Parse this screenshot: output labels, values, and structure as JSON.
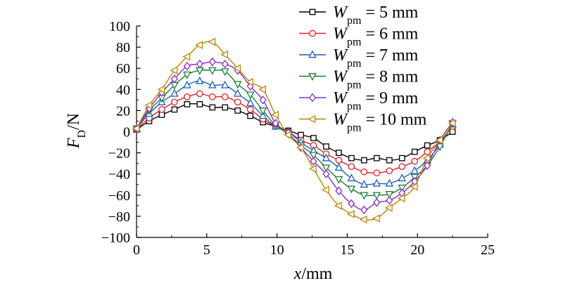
{
  "chart_data": {
    "type": "line",
    "xlabel": {
      "main": "x",
      "unit": "/mm"
    },
    "ylabel": {
      "main": "F",
      "sub": "D",
      "unit": "/N"
    },
    "xlim": [
      0,
      25
    ],
    "ylim": [
      -100,
      100
    ],
    "xticks": [
      0,
      5,
      10,
      15,
      20,
      25
    ],
    "yticks": [
      -100,
      -80,
      -60,
      -40,
      -20,
      0,
      20,
      40,
      60,
      80,
      100
    ],
    "xtick_labels": [
      "0",
      "5",
      "10",
      "15",
      "20",
      "25"
    ],
    "ytick_labels": [
      "−100",
      "−80",
      "−60",
      "−40",
      "−20",
      "0",
      "20",
      "40",
      "60",
      "80",
      "100"
    ],
    "grid": false,
    "legend_position": "top-right",
    "x": [
      0,
      0.9,
      1.8,
      2.7,
      3.6,
      4.5,
      5.4,
      6.3,
      7.2,
      8.1,
      9.0,
      9.9,
      10.8,
      11.7,
      12.6,
      13.5,
      14.4,
      15.3,
      16.2,
      17.1,
      18.0,
      18.9,
      19.8,
      20.7,
      21.6,
      22.5
    ],
    "series": [
      {
        "name": "W_pm = 5 mm",
        "legend": {
          "main": "W",
          "sub": "pm",
          "rest": " = 5 mm"
        },
        "color": "#000000",
        "marker": "square",
        "values": [
          2,
          10,
          16,
          21,
          26,
          26,
          23,
          23,
          20,
          15,
          9,
          5,
          1,
          -3,
          -6,
          -14,
          -20,
          -25,
          -27,
          -25,
          -27,
          -25,
          -19,
          -13,
          -8,
          0
        ]
      },
      {
        "name": "W_pm = 6 mm",
        "legend": {
          "main": "W",
          "sub": "pm",
          "rest": " = 6 mm"
        },
        "color": "#e0202a",
        "marker": "circle",
        "values": [
          2,
          13,
          21,
          28,
          33,
          36,
          33,
          33,
          28,
          21,
          12,
          5,
          0,
          -8,
          -13,
          -21,
          -27,
          -33,
          -38,
          -39,
          -37,
          -33,
          -28,
          -19,
          -9,
          5
        ]
      },
      {
        "name": "W_pm = 7 mm",
        "legend": {
          "main": "W",
          "sub": "pm",
          "rest": " = 7 mm"
        },
        "color": "#1f5fb5",
        "marker": "triangle-up",
        "values": [
          3,
          17,
          28,
          36,
          44,
          48,
          44,
          44,
          36,
          27,
          15,
          5,
          0,
          -10,
          -18,
          -25,
          -34,
          -44,
          -50,
          -49,
          -49,
          -44,
          -37,
          -27,
          -12,
          7
        ]
      },
      {
        "name": "W_pm = 8 mm",
        "legend": {
          "main": "W",
          "sub": "pm",
          "rest": " = 8 mm"
        },
        "color": "#1e7a3a",
        "marker": "triangle-down",
        "values": [
          3,
          20,
          32,
          44,
          54,
          58,
          58,
          57,
          45,
          35,
          20,
          6,
          -2,
          -13,
          -22,
          -34,
          -45,
          -54,
          -60,
          -60,
          -59,
          -53,
          -43,
          -32,
          -14,
          8
        ]
      },
      {
        "name": "W_pm = 9 mm",
        "legend": {
          "main": "W",
          "sub": "pm",
          "rest": " = 9 mm"
        },
        "color": "#8a2bc6",
        "marker": "diamond",
        "values": [
          3,
          22,
          37,
          50,
          62,
          64,
          66,
          64,
          58,
          43,
          30,
          8,
          -1,
          -15,
          -28,
          -40,
          -56,
          -68,
          -74,
          -67,
          -65,
          -58,
          -47,
          -32,
          -8,
          9
        ]
      },
      {
        "name": "W_pm = 10 mm",
        "legend": {
          "main": "W",
          "sub": "pm",
          "rest": " = 10 mm"
        },
        "color": "#b8860b",
        "marker": "triangle-left",
        "values": [
          3,
          25,
          40,
          58,
          71,
          82,
          85,
          73,
          60,
          47,
          40,
          16,
          -3,
          -15,
          -35,
          -55,
          -70,
          -78,
          -83,
          -82,
          -72,
          -63,
          -52,
          -25,
          -8,
          8
        ]
      }
    ]
  }
}
